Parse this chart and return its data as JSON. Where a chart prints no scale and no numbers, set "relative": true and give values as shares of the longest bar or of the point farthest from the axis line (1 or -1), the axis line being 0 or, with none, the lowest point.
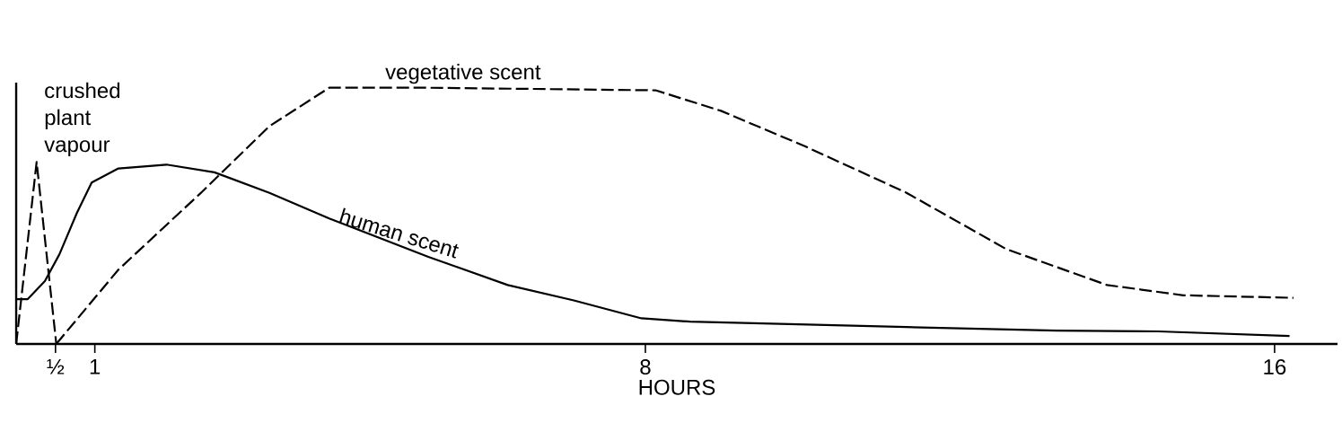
{
  "chart_data": {
    "type": "line",
    "relative": true,
    "xlabel": "HOURS",
    "xlim": [
      0,
      16.8
    ],
    "xticks": [
      {
        "value": 0.5,
        "label": "½"
      },
      1,
      8,
      16
    ],
    "series": [
      {
        "name": "crushed plant vapour",
        "color": "#000000",
        "line_style": "dashed",
        "x": [
          0,
          0.26,
          0.51
        ],
        "values": [
          0,
          0.71,
          0
        ]
      },
      {
        "name": "vegetative scent",
        "color": "#000000",
        "line_style": "dashed",
        "x": [
          0.51,
          1.3,
          2.35,
          3.22,
          3.98,
          5.24,
          8.13,
          8.96,
          10.04,
          11.32,
          12.59,
          13.87,
          14.84,
          16.24
        ],
        "values": [
          0,
          0.29,
          0.59,
          0.85,
          1.0,
          1.0,
          0.99,
          0.91,
          0.77,
          0.59,
          0.37,
          0.23,
          0.19,
          0.18
        ]
      },
      {
        "name": "human scent",
        "color": "#000000",
        "line_style": "solid",
        "x": [
          0,
          0.147,
          0.365,
          0.55,
          0.77,
          0.96,
          1.3,
          1.91,
          2.52,
          3.22,
          3.98,
          5.24,
          6.25,
          7.09,
          7.95,
          8.57,
          11.32,
          13.23,
          14.52,
          16.19
        ],
        "values": [
          0.175,
          0.175,
          0.245,
          0.35,
          0.51,
          0.63,
          0.685,
          0.7,
          0.67,
          0.59,
          0.49,
          0.34,
          0.23,
          0.17,
          0.1,
          0.087,
          0.066,
          0.052,
          0.049,
          0.031
        ]
      }
    ],
    "grid": false,
    "marker": "none"
  }
}
